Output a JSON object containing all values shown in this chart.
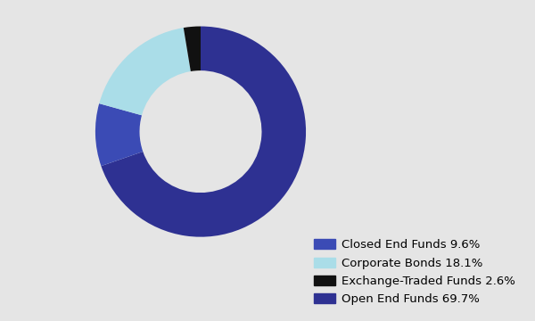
{
  "labels": [
    "Closed End Funds 9.6%",
    "Corporate Bonds 18.1%",
    "Exchange-Traded Funds 2.6%",
    "Open End Funds 69.7%"
  ],
  "values_ordered": [
    69.7,
    9.6,
    18.1,
    2.6
  ],
  "colors_ordered": [
    "#2e3192",
    "#3b4bb5",
    "#aadde8",
    "#111111"
  ],
  "legend_colors": [
    "#3b4bb5",
    "#aadde8",
    "#111111",
    "#2e3192"
  ],
  "background_color": "#e5e5e5",
  "donut_width": 0.42,
  "legend_fontsize": 9.5,
  "startangle": 90
}
